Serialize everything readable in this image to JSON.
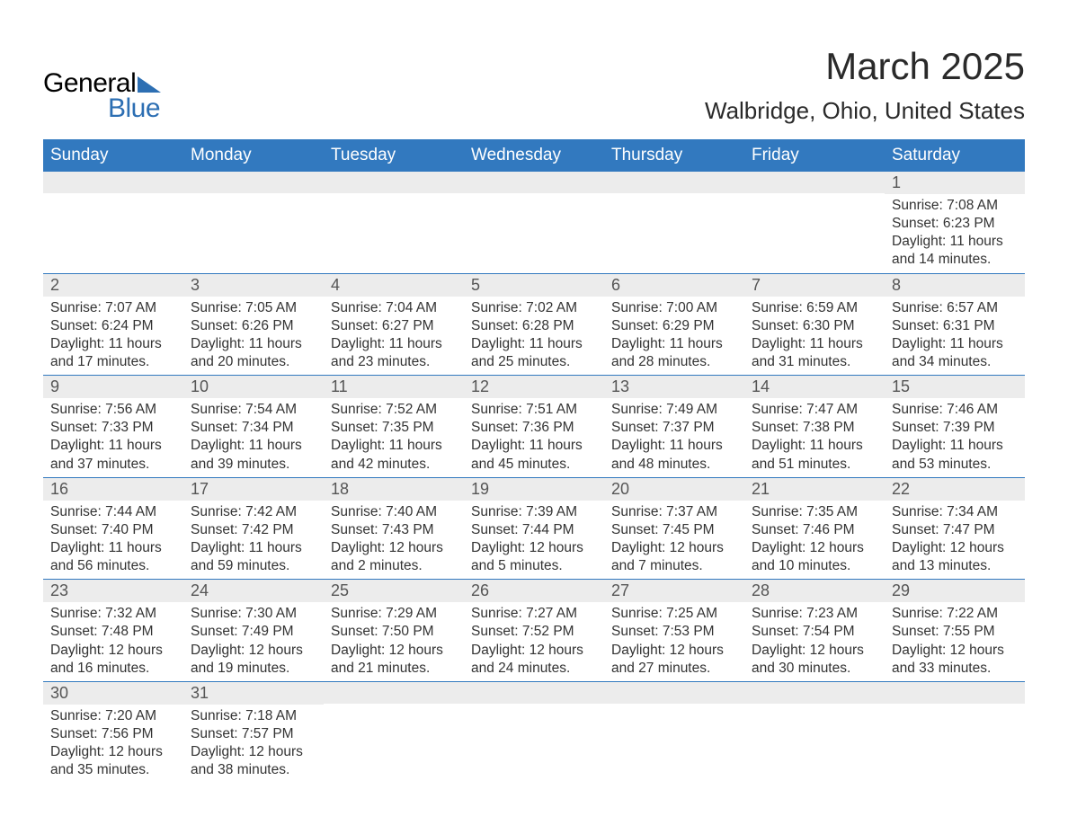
{
  "logo": {
    "general": "General",
    "blue": "Blue"
  },
  "header": {
    "month_title": "March 2025",
    "location": "Walbridge, Ohio, United States",
    "title_fontsize": 42,
    "location_fontsize": 26
  },
  "colors": {
    "header_bg": "#3279bf",
    "header_text": "#ffffff",
    "daynum_bg": "#ececec",
    "text": "#333333",
    "row_border": "#3279bf",
    "logo_accent": "#2d6fb3",
    "background": "#ffffff"
  },
  "fonts": {
    "body": 15.5,
    "daynum": 18,
    "weekday": 19
  },
  "weekdays": [
    "Sunday",
    "Monday",
    "Tuesday",
    "Wednesday",
    "Thursday",
    "Friday",
    "Saturday"
  ],
  "grid": {
    "columns": 7,
    "rows": 6,
    "start_weekday_index": 6
  },
  "weeks": [
    [
      null,
      null,
      null,
      null,
      null,
      null,
      {
        "day": "1",
        "sunrise": "Sunrise: 7:08 AM",
        "sunset": "Sunset: 6:23 PM",
        "dl1": "Daylight: 11 hours",
        "dl2": "and 14 minutes."
      }
    ],
    [
      {
        "day": "2",
        "sunrise": "Sunrise: 7:07 AM",
        "sunset": "Sunset: 6:24 PM",
        "dl1": "Daylight: 11 hours",
        "dl2": "and 17 minutes."
      },
      {
        "day": "3",
        "sunrise": "Sunrise: 7:05 AM",
        "sunset": "Sunset: 6:26 PM",
        "dl1": "Daylight: 11 hours",
        "dl2": "and 20 minutes."
      },
      {
        "day": "4",
        "sunrise": "Sunrise: 7:04 AM",
        "sunset": "Sunset: 6:27 PM",
        "dl1": "Daylight: 11 hours",
        "dl2": "and 23 minutes."
      },
      {
        "day": "5",
        "sunrise": "Sunrise: 7:02 AM",
        "sunset": "Sunset: 6:28 PM",
        "dl1": "Daylight: 11 hours",
        "dl2": "and 25 minutes."
      },
      {
        "day": "6",
        "sunrise": "Sunrise: 7:00 AM",
        "sunset": "Sunset: 6:29 PM",
        "dl1": "Daylight: 11 hours",
        "dl2": "and 28 minutes."
      },
      {
        "day": "7",
        "sunrise": "Sunrise: 6:59 AM",
        "sunset": "Sunset: 6:30 PM",
        "dl1": "Daylight: 11 hours",
        "dl2": "and 31 minutes."
      },
      {
        "day": "8",
        "sunrise": "Sunrise: 6:57 AM",
        "sunset": "Sunset: 6:31 PM",
        "dl1": "Daylight: 11 hours",
        "dl2": "and 34 minutes."
      }
    ],
    [
      {
        "day": "9",
        "sunrise": "Sunrise: 7:56 AM",
        "sunset": "Sunset: 7:33 PM",
        "dl1": "Daylight: 11 hours",
        "dl2": "and 37 minutes."
      },
      {
        "day": "10",
        "sunrise": "Sunrise: 7:54 AM",
        "sunset": "Sunset: 7:34 PM",
        "dl1": "Daylight: 11 hours",
        "dl2": "and 39 minutes."
      },
      {
        "day": "11",
        "sunrise": "Sunrise: 7:52 AM",
        "sunset": "Sunset: 7:35 PM",
        "dl1": "Daylight: 11 hours",
        "dl2": "and 42 minutes."
      },
      {
        "day": "12",
        "sunrise": "Sunrise: 7:51 AM",
        "sunset": "Sunset: 7:36 PM",
        "dl1": "Daylight: 11 hours",
        "dl2": "and 45 minutes."
      },
      {
        "day": "13",
        "sunrise": "Sunrise: 7:49 AM",
        "sunset": "Sunset: 7:37 PM",
        "dl1": "Daylight: 11 hours",
        "dl2": "and 48 minutes."
      },
      {
        "day": "14",
        "sunrise": "Sunrise: 7:47 AM",
        "sunset": "Sunset: 7:38 PM",
        "dl1": "Daylight: 11 hours",
        "dl2": "and 51 minutes."
      },
      {
        "day": "15",
        "sunrise": "Sunrise: 7:46 AM",
        "sunset": "Sunset: 7:39 PM",
        "dl1": "Daylight: 11 hours",
        "dl2": "and 53 minutes."
      }
    ],
    [
      {
        "day": "16",
        "sunrise": "Sunrise: 7:44 AM",
        "sunset": "Sunset: 7:40 PM",
        "dl1": "Daylight: 11 hours",
        "dl2": "and 56 minutes."
      },
      {
        "day": "17",
        "sunrise": "Sunrise: 7:42 AM",
        "sunset": "Sunset: 7:42 PM",
        "dl1": "Daylight: 11 hours",
        "dl2": "and 59 minutes."
      },
      {
        "day": "18",
        "sunrise": "Sunrise: 7:40 AM",
        "sunset": "Sunset: 7:43 PM",
        "dl1": "Daylight: 12 hours",
        "dl2": "and 2 minutes."
      },
      {
        "day": "19",
        "sunrise": "Sunrise: 7:39 AM",
        "sunset": "Sunset: 7:44 PM",
        "dl1": "Daylight: 12 hours",
        "dl2": "and 5 minutes."
      },
      {
        "day": "20",
        "sunrise": "Sunrise: 7:37 AM",
        "sunset": "Sunset: 7:45 PM",
        "dl1": "Daylight: 12 hours",
        "dl2": "and 7 minutes."
      },
      {
        "day": "21",
        "sunrise": "Sunrise: 7:35 AM",
        "sunset": "Sunset: 7:46 PM",
        "dl1": "Daylight: 12 hours",
        "dl2": "and 10 minutes."
      },
      {
        "day": "22",
        "sunrise": "Sunrise: 7:34 AM",
        "sunset": "Sunset: 7:47 PM",
        "dl1": "Daylight: 12 hours",
        "dl2": "and 13 minutes."
      }
    ],
    [
      {
        "day": "23",
        "sunrise": "Sunrise: 7:32 AM",
        "sunset": "Sunset: 7:48 PM",
        "dl1": "Daylight: 12 hours",
        "dl2": "and 16 minutes."
      },
      {
        "day": "24",
        "sunrise": "Sunrise: 7:30 AM",
        "sunset": "Sunset: 7:49 PM",
        "dl1": "Daylight: 12 hours",
        "dl2": "and 19 minutes."
      },
      {
        "day": "25",
        "sunrise": "Sunrise: 7:29 AM",
        "sunset": "Sunset: 7:50 PM",
        "dl1": "Daylight: 12 hours",
        "dl2": "and 21 minutes."
      },
      {
        "day": "26",
        "sunrise": "Sunrise: 7:27 AM",
        "sunset": "Sunset: 7:52 PM",
        "dl1": "Daylight: 12 hours",
        "dl2": "and 24 minutes."
      },
      {
        "day": "27",
        "sunrise": "Sunrise: 7:25 AM",
        "sunset": "Sunset: 7:53 PM",
        "dl1": "Daylight: 12 hours",
        "dl2": "and 27 minutes."
      },
      {
        "day": "28",
        "sunrise": "Sunrise: 7:23 AM",
        "sunset": "Sunset: 7:54 PM",
        "dl1": "Daylight: 12 hours",
        "dl2": "and 30 minutes."
      },
      {
        "day": "29",
        "sunrise": "Sunrise: 7:22 AM",
        "sunset": "Sunset: 7:55 PM",
        "dl1": "Daylight: 12 hours",
        "dl2": "and 33 minutes."
      }
    ],
    [
      {
        "day": "30",
        "sunrise": "Sunrise: 7:20 AM",
        "sunset": "Sunset: 7:56 PM",
        "dl1": "Daylight: 12 hours",
        "dl2": "and 35 minutes."
      },
      {
        "day": "31",
        "sunrise": "Sunrise: 7:18 AM",
        "sunset": "Sunset: 7:57 PM",
        "dl1": "Daylight: 12 hours",
        "dl2": "and 38 minutes."
      },
      null,
      null,
      null,
      null,
      null
    ]
  ]
}
